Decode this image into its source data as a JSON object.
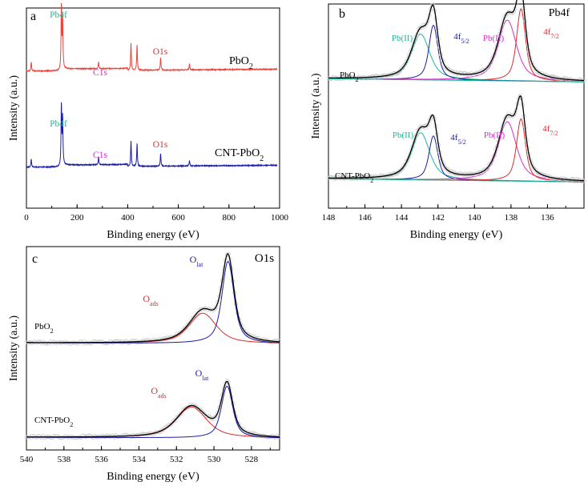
{
  "chart_data": [
    {
      "type": "line",
      "panel_label": "a",
      "xlabel": "Binding energy (eV)",
      "ylabel": "Intensity (a.u.)",
      "xlim": [
        0,
        1000
      ],
      "x_ticks": [
        0,
        200,
        400,
        600,
        800,
        1000
      ],
      "peaks_ev": [
        19,
        138,
        143,
        285,
        413,
        437,
        530,
        644
      ],
      "series": [
        {
          "name": "PbO2",
          "color": "#e8443a",
          "offset": 1.0,
          "peak_heights": [
            0.14,
            1.0,
            0.75,
            0.1,
            0.42,
            0.4,
            0.2,
            0.1
          ]
        },
        {
          "name": "CNT-PbO2",
          "color": "#1c1ca8",
          "offset": 0.0,
          "peak_heights": [
            0.13,
            0.95,
            0.72,
            0.12,
            0.4,
            0.36,
            0.2,
            0.08
          ]
        }
      ],
      "annotations": [
        {
          "text": "Pb4f",
          "color": "#19b89a"
        },
        {
          "text": "C1s",
          "color": "#d62fc8"
        },
        {
          "text": "O1s",
          "color": "#e02a2a"
        },
        {
          "text": "Pb4f",
          "color": "#19b89a"
        },
        {
          "text": "C1s",
          "color": "#d62fc8"
        },
        {
          "text": "O1s",
          "color": "#e02a2a"
        }
      ],
      "curve_labels": [
        {
          "text": "PbO",
          "sub": "2"
        },
        {
          "text": "CNT-PbO",
          "sub": "2"
        }
      ]
    },
    {
      "type": "line",
      "panel_label": "b",
      "title": "Pb4f",
      "xlabel": "Binding energy (eV)",
      "ylabel": "Intensity (a.u.)",
      "xlim": [
        148,
        134
      ],
      "x_ticks": [
        148,
        146,
        144,
        142,
        140,
        138,
        136
      ],
      "components": [
        {
          "name": "Pb(II) 5/2",
          "center": 142.95,
          "width": 0.65,
          "color": "#19b89a"
        },
        {
          "name": "4f5/2",
          "center": 142.25,
          "width": 0.32,
          "color": "#1c1ca8"
        },
        {
          "name": "Pb(II) 7/2",
          "center": 138.2,
          "width": 0.65,
          "color": "#d62fc8"
        },
        {
          "name": "4f7/2",
          "center": 137.45,
          "width": 0.32,
          "color": "#e02a2a"
        }
      ],
      "series": [
        {
          "name": "PbO2",
          "amplitudes": [
            0.6,
            0.72,
            0.8,
            0.95
          ]
        },
        {
          "name": "CNT-PbO2",
          "amplitudes": [
            0.62,
            0.58,
            0.78,
            0.82
          ]
        }
      ],
      "annotations": [
        {
          "text": "Pb(II)",
          "color": "#19b89a"
        },
        {
          "text": "4f",
          "sub": "5/2",
          "color": "#1c1ca8"
        },
        {
          "text": "Pb(II)",
          "color": "#d62fc8"
        },
        {
          "text": "4f",
          "sub": "7/2",
          "color": "#e02a2a"
        },
        {
          "text": "Pb(II)",
          "color": "#19b89a"
        },
        {
          "text": "4f",
          "sub": "5/2",
          "color": "#1c1ca8"
        },
        {
          "text": "Pb(II)",
          "color": "#d62fc8"
        },
        {
          "text": "4f",
          "sub": "7/2",
          "color": "#e02a2a"
        }
      ],
      "curve_labels": [
        {
          "text": "PbO",
          "sub": "2"
        },
        {
          "text": "CNT-PbO",
          "sub": "2"
        }
      ]
    },
    {
      "type": "line",
      "panel_label": "c",
      "title": "O1s",
      "xlabel": "Binding energy (eV)",
      "ylabel": "Intensity (a.u.)",
      "xlim": [
        540,
        526.5
      ],
      "x_ticks": [
        540,
        538,
        536,
        534,
        532,
        530,
        528
      ],
      "components": [
        {
          "name": "Oads",
          "color": "#e02a2a"
        },
        {
          "name": "Olat",
          "color": "#1c1ca8"
        }
      ],
      "series": [
        {
          "name": "PbO2",
          "oads_center": 530.6,
          "oads_width": 0.95,
          "oads_amp": 0.35,
          "olat_center": 529.25,
          "olat_width": 0.42,
          "olat_amp": 0.95
        },
        {
          "name": "CNT-PbO2",
          "oads_center": 531.2,
          "oads_width": 1.05,
          "oads_amp": 0.36,
          "olat_center": 529.3,
          "olat_width": 0.4,
          "olat_amp": 0.6
        }
      ],
      "annotations": [
        {
          "text": "O",
          "sub": "lat",
          "color": "#1c1ca8"
        },
        {
          "text": "O",
          "sub": "ads",
          "color": "#e02a2a"
        },
        {
          "text": "O",
          "sub": "lat",
          "color": "#1c1ca8"
        },
        {
          "text": "O",
          "sub": "ads",
          "color": "#e02a2a"
        }
      ],
      "curve_labels": [
        {
          "text": "PbO",
          "sub": "2"
        },
        {
          "text": "CNT-PbO",
          "sub": "2"
        }
      ]
    }
  ]
}
